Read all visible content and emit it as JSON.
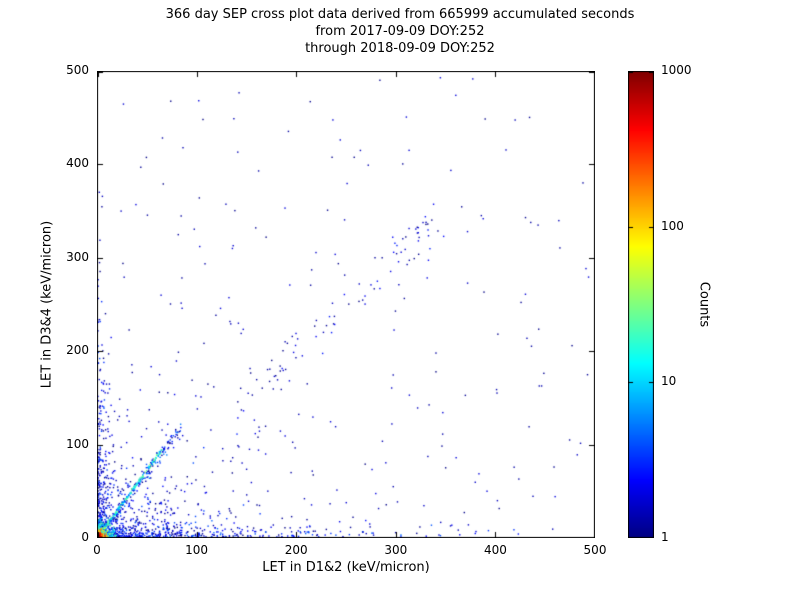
{
  "title": {
    "line1": "366 day SEP cross plot data derived from 665999 accumulated seconds",
    "line2": "from 2017-09-09 DOY:252",
    "line3": "through 2018-09-09 DOY:252"
  },
  "chart_data": {
    "type": "scatter",
    "xlabel": "LET in D1&2 (keV/micron)",
    "ylabel": "LET in D3&4 (keV/micron)",
    "xlim": [
      0,
      500
    ],
    "ylim": [
      0,
      500
    ],
    "xticks": [
      0,
      100,
      200,
      300,
      400,
      500
    ],
    "yticks": [
      0,
      100,
      200,
      300,
      400,
      500
    ],
    "grid": false,
    "colorbar": {
      "label": "Counts",
      "scale": "log",
      "ticks": [
        1,
        10,
        100,
        1000
      ],
      "range": [
        1,
        1000
      ],
      "colormap": "jet",
      "color_low": "#00008b",
      "color_high": "#800000"
    },
    "description": "2D cross plot of LET measured in detectors D1&2 vs D3&4; point color encodes log10 counts (jet colormap). Dense hot core (red/yellow, up to ~1000 counts) at origin below ~10 keV/micron; bright cyan diagonal streak of slope ~1.45 from origin to ~(64,93); dense dark-blue bands along both axes (x out to ~480, y out to ~435); sparse dark-blue single-count points scattered across the full plane with a loose diagonal band near y=x between 140 and 345.",
    "clusters": [
      {
        "name": "sparse-uniform",
        "count": 130,
        "x": {
          "dist": "uniform",
          "max": 495
        },
        "y": {
          "dist": "uniform",
          "max": 495
        },
        "counts": [
          1,
          2
        ]
      },
      {
        "name": "sparse-lower",
        "count": 200,
        "x": {
          "dist": "exp",
          "scale": 150,
          "max": 495
        },
        "y": {
          "dist": "exp",
          "scale": 120,
          "max": 495
        },
        "counts": [
          1,
          2
        ]
      },
      {
        "name": "mid-diagonal-band",
        "count": 85,
        "line": {
          "x0": 140,
          "x1": 345,
          "slope": 1.0,
          "jitter": 28,
          "pow": 1.0
        },
        "counts": [
          1,
          3
        ]
      },
      {
        "name": "y-axis-band",
        "count": 260,
        "x": {
          "dist": "exp",
          "scale": 5,
          "max": 18
        },
        "y": {
          "dist": "exp",
          "scale": 70,
          "max": 435
        },
        "counts": [
          1,
          4
        ]
      },
      {
        "name": "x-axis-band",
        "count": 430,
        "x": {
          "dist": "exp",
          "scale": 90,
          "max": 478
        },
        "y": {
          "dist": "exp",
          "scale": 6,
          "max": 20
        },
        "counts": [
          1,
          5
        ]
      },
      {
        "name": "lower-left-cloud",
        "count": 320,
        "x": {
          "dist": "exp",
          "scale": 35,
          "max": 165
        },
        "y": {
          "dist": "exp",
          "scale": 30,
          "max": 165
        },
        "counts": [
          1,
          4
        ]
      },
      {
        "name": "streak-halo",
        "count": 180,
        "line": {
          "x0": 0,
          "x1": 82,
          "slope": 1.4,
          "jitter": 9,
          "pow": 1.2
        },
        "counts": [
          1,
          6
        ]
      },
      {
        "name": "diagonal-streak",
        "count": 240,
        "line": {
          "x0": 1,
          "x1": 64,
          "slope": 1.45,
          "jitter": 2.2,
          "pow": 1.3
        },
        "counts": [
          4,
          40
        ]
      },
      {
        "name": "core-outer",
        "count": 360,
        "x": {
          "dist": "exp",
          "scale": 6,
          "max": 20
        },
        "y": {
          "dist": "exp",
          "scale": 6,
          "max": 20
        },
        "counts": [
          3,
          30
        ]
      },
      {
        "name": "core-mid",
        "count": 140,
        "x": {
          "dist": "exp",
          "scale": 3,
          "max": 10
        },
        "y": {
          "dist": "exp",
          "scale": 3,
          "max": 10
        },
        "counts": [
          30,
          300
        ]
      },
      {
        "name": "core-hot",
        "count": 55,
        "x": {
          "dist": "exp",
          "scale": 1.5,
          "max": 5
        },
        "y": {
          "dist": "exp",
          "scale": 1.5,
          "max": 5
        },
        "counts": [
          300,
          1000
        ]
      }
    ]
  }
}
